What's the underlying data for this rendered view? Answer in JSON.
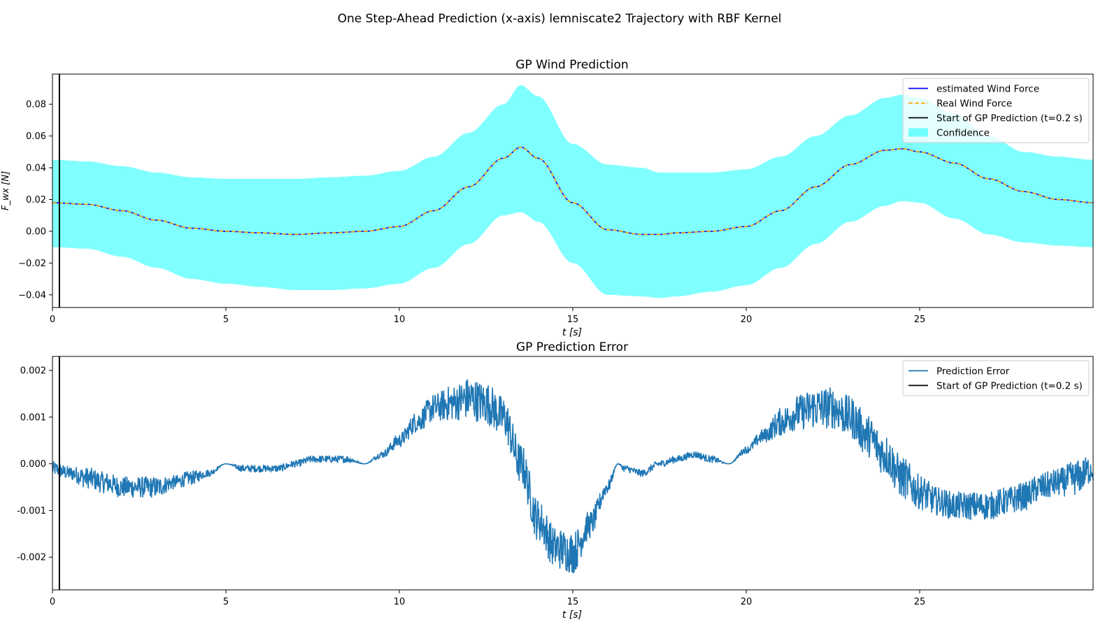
{
  "suptitle": "One Step-Ahead Prediction (x-axis) lemniscate2 Trajectory with RBF Kernel",
  "chart_data": [
    {
      "type": "line",
      "title": "GP Wind Prediction",
      "xlabel": "t [s]",
      "ylabel": "F_wx [N]",
      "xlim": [
        0,
        30
      ],
      "ylim": [
        -0.048,
        0.099
      ],
      "xticks": [
        0,
        5,
        10,
        15,
        20,
        25
      ],
      "xtick_labels": [
        "0",
        "5",
        "10",
        "15",
        "20",
        "25"
      ],
      "yticks": [
        -0.04,
        -0.02,
        0.0,
        0.02,
        0.04,
        0.06,
        0.08
      ],
      "ytick_labels": [
        "−0.04",
        "−0.02",
        "0.00",
        "0.02",
        "0.04",
        "0.06",
        "0.08"
      ],
      "grid": false,
      "legend_position": "top-right",
      "vline_x": 0.2,
      "x": [
        0,
        1,
        2,
        3,
        4,
        5,
        6,
        7,
        8,
        9,
        10,
        11,
        12,
        13,
        13.5,
        14,
        15,
        16,
        17,
        17.5,
        18,
        19,
        20,
        21,
        22,
        23,
        24,
        24.5,
        25,
        26,
        27,
        28,
        29,
        30
      ],
      "series": [
        {
          "name": "estimated Wind Force",
          "color": "#0000ff",
          "style": "solid",
          "values": [
            0.018,
            0.017,
            0.013,
            0.007,
            0.002,
            0.0,
            -0.001,
            -0.002,
            -0.001,
            0.0,
            0.003,
            0.013,
            0.028,
            0.046,
            0.053,
            0.046,
            0.018,
            0.001,
            -0.002,
            -0.002,
            -0.001,
            0.0,
            0.003,
            0.013,
            0.028,
            0.042,
            0.051,
            0.052,
            0.05,
            0.043,
            0.033,
            0.025,
            0.02,
            0.018
          ]
        },
        {
          "name": "Real Wind Force",
          "color": "#ffa500",
          "style": "dashed",
          "values": [
            0.018,
            0.017,
            0.013,
            0.007,
            0.002,
            0.0,
            -0.001,
            -0.002,
            -0.001,
            0.0,
            0.003,
            0.013,
            0.028,
            0.046,
            0.053,
            0.046,
            0.018,
            0.001,
            -0.002,
            -0.002,
            -0.001,
            0.0,
            0.003,
            0.013,
            0.028,
            0.042,
            0.051,
            0.052,
            0.05,
            0.043,
            0.033,
            0.025,
            0.02,
            0.018
          ]
        }
      ],
      "confidence": {
        "name": "Confidence",
        "color": "#00ffff",
        "opacity": 0.5,
        "upper": [
          0.045,
          0.044,
          0.041,
          0.037,
          0.034,
          0.033,
          0.033,
          0.033,
          0.034,
          0.035,
          0.038,
          0.047,
          0.062,
          0.08,
          0.092,
          0.085,
          0.055,
          0.042,
          0.04,
          0.037,
          0.037,
          0.037,
          0.039,
          0.047,
          0.06,
          0.073,
          0.084,
          0.086,
          0.084,
          0.074,
          0.06,
          0.05,
          0.047,
          0.045
        ],
        "lower": [
          -0.01,
          -0.011,
          -0.016,
          -0.023,
          -0.03,
          -0.033,
          -0.035,
          -0.037,
          -0.037,
          -0.036,
          -0.033,
          -0.023,
          -0.008,
          0.01,
          0.012,
          0.006,
          -0.02,
          -0.04,
          -0.041,
          -0.042,
          -0.041,
          -0.038,
          -0.034,
          -0.023,
          -0.008,
          0.006,
          0.016,
          0.019,
          0.018,
          0.008,
          -0.002,
          -0.007,
          -0.009,
          -0.01
        ]
      },
      "legend_entries": [
        "estimated Wind Force",
        "Real Wind Force",
        "Start of GP Prediction (t=0.2 s)",
        "Confidence"
      ]
    },
    {
      "type": "line",
      "title": "GP Prediction Error",
      "xlabel": "t [s]",
      "ylabel": "",
      "xlim": [
        0,
        30
      ],
      "ylim": [
        -0.0027,
        0.0023
      ],
      "xticks": [
        0,
        5,
        10,
        15,
        20,
        25
      ],
      "xtick_labels": [
        "0",
        "5",
        "10",
        "15",
        "20",
        "25"
      ],
      "yticks": [
        -0.002,
        -0.001,
        0.0,
        0.001,
        0.002
      ],
      "ytick_labels": [
        "-0.002",
        "-0.001",
        "0.000",
        "0.001",
        "0.002"
      ],
      "grid": false,
      "legend_position": "top-right",
      "vline_x": 0.2,
      "x": [
        0,
        0.5,
        1,
        1.5,
        2,
        2.5,
        3,
        3.5,
        4,
        4.5,
        5,
        5.5,
        6,
        6.5,
        7,
        7.5,
        8,
        8.5,
        9,
        9.5,
        10,
        10.5,
        11,
        11.5,
        12,
        12.5,
        13,
        13.5,
        14,
        14.5,
        15,
        15.5,
        16,
        16.3,
        16.5,
        17,
        17.5,
        18,
        18.5,
        19,
        19.5,
        20,
        20.5,
        21,
        21.5,
        22,
        22.5,
        23,
        23.5,
        24,
        24.5,
        25,
        25.5,
        26,
        26.5,
        27,
        27.5,
        28,
        28.5,
        29,
        29.5,
        30
      ],
      "series": [
        {
          "name": "Prediction Error",
          "color": "#1f77b4",
          "style": "solid",
          "values": [
            -0.0001,
            -0.0002,
            -0.0003,
            -0.0004,
            -0.0005,
            -0.0005,
            -0.0005,
            -0.0004,
            -0.0003,
            -0.0002,
            0.0,
            -0.0001,
            -0.0001,
            -0.0001,
            0.0,
            0.0001,
            0.0001,
            0.0001,
            0.0,
            0.0002,
            0.0005,
            0.0009,
            0.0012,
            0.0013,
            0.0014,
            0.0013,
            0.001,
            0.0,
            -0.0012,
            -0.0018,
            -0.0019,
            -0.0013,
            -0.0005,
            0.0,
            -0.0001,
            -0.0002,
            0.0,
            0.0001,
            0.0002,
            0.0001,
            0.0,
            0.0003,
            0.0006,
            0.0009,
            0.0011,
            0.0012,
            0.0012,
            0.001,
            0.0006,
            0.0002,
            -0.0003,
            -0.0006,
            -0.0008,
            -0.0009,
            -0.0009,
            -0.0009,
            -0.0008,
            -0.0007,
            -0.0005,
            -0.0004,
            -0.0003,
            -0.0001
          ]
        }
      ],
      "noise_amplitude": [
        0.0001,
        0.0001,
        0.00015,
        0.00015,
        0.00015,
        0.00015,
        0.00015,
        0.0001,
        0.0001,
        5e-05,
        0.0,
        5e-05,
        5e-05,
        5e-05,
        5e-05,
        5e-05,
        5e-05,
        5e-05,
        0.0,
        5e-05,
        0.0001,
        0.00015,
        0.0002,
        0.00025,
        0.0003,
        0.0003,
        0.0003,
        0.0003,
        0.0003,
        0.0003,
        0.0003,
        0.0002,
        0.0001,
        0.0,
        5e-05,
        5e-05,
        5e-05,
        5e-05,
        5e-05,
        5e-05,
        0.0,
        5e-05,
        0.0001,
        0.0002,
        0.00025,
        0.0003,
        0.0003,
        0.0003,
        0.0003,
        0.0003,
        0.0003,
        0.00025,
        0.0002,
        0.0002,
        0.0002,
        0.0002,
        0.0002,
        0.0002,
        0.0002,
        0.0002,
        0.00025,
        0.0002
      ],
      "legend_entries": [
        "Prediction Error",
        "Start of GP Prediction (t=0.2 s)"
      ]
    }
  ]
}
